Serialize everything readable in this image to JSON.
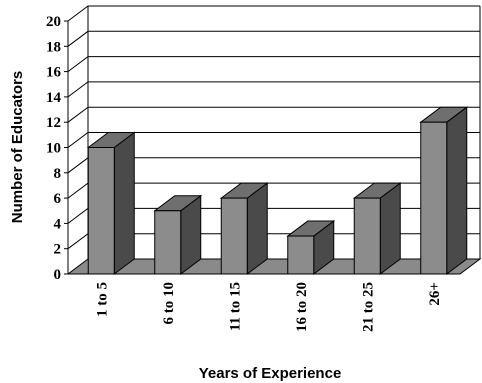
{
  "chart_data": {
    "type": "bar",
    "style": "3d",
    "categories": [
      "1 to 5",
      "6 to 10",
      "11 to 15",
      "16 to 20",
      "21 to 25",
      "26+"
    ],
    "series": [
      {
        "values": [
          10,
          5,
          6,
          3,
          6,
          12
        ]
      }
    ],
    "xlabel": "Years of Experience",
    "ylabel": "Number of Educators",
    "ylim": [
      0,
      20
    ],
    "yticks": [
      0,
      2,
      4,
      6,
      8,
      10,
      12,
      14,
      16,
      18,
      20
    ],
    "grid": true,
    "legend": "none",
    "colors": {
      "bar_front": "#8c8c8c",
      "bar_top": "#6f6f6f",
      "bar_side": "#4a4a4a",
      "floor": "#8a8a8a",
      "grid": "#000000"
    }
  }
}
